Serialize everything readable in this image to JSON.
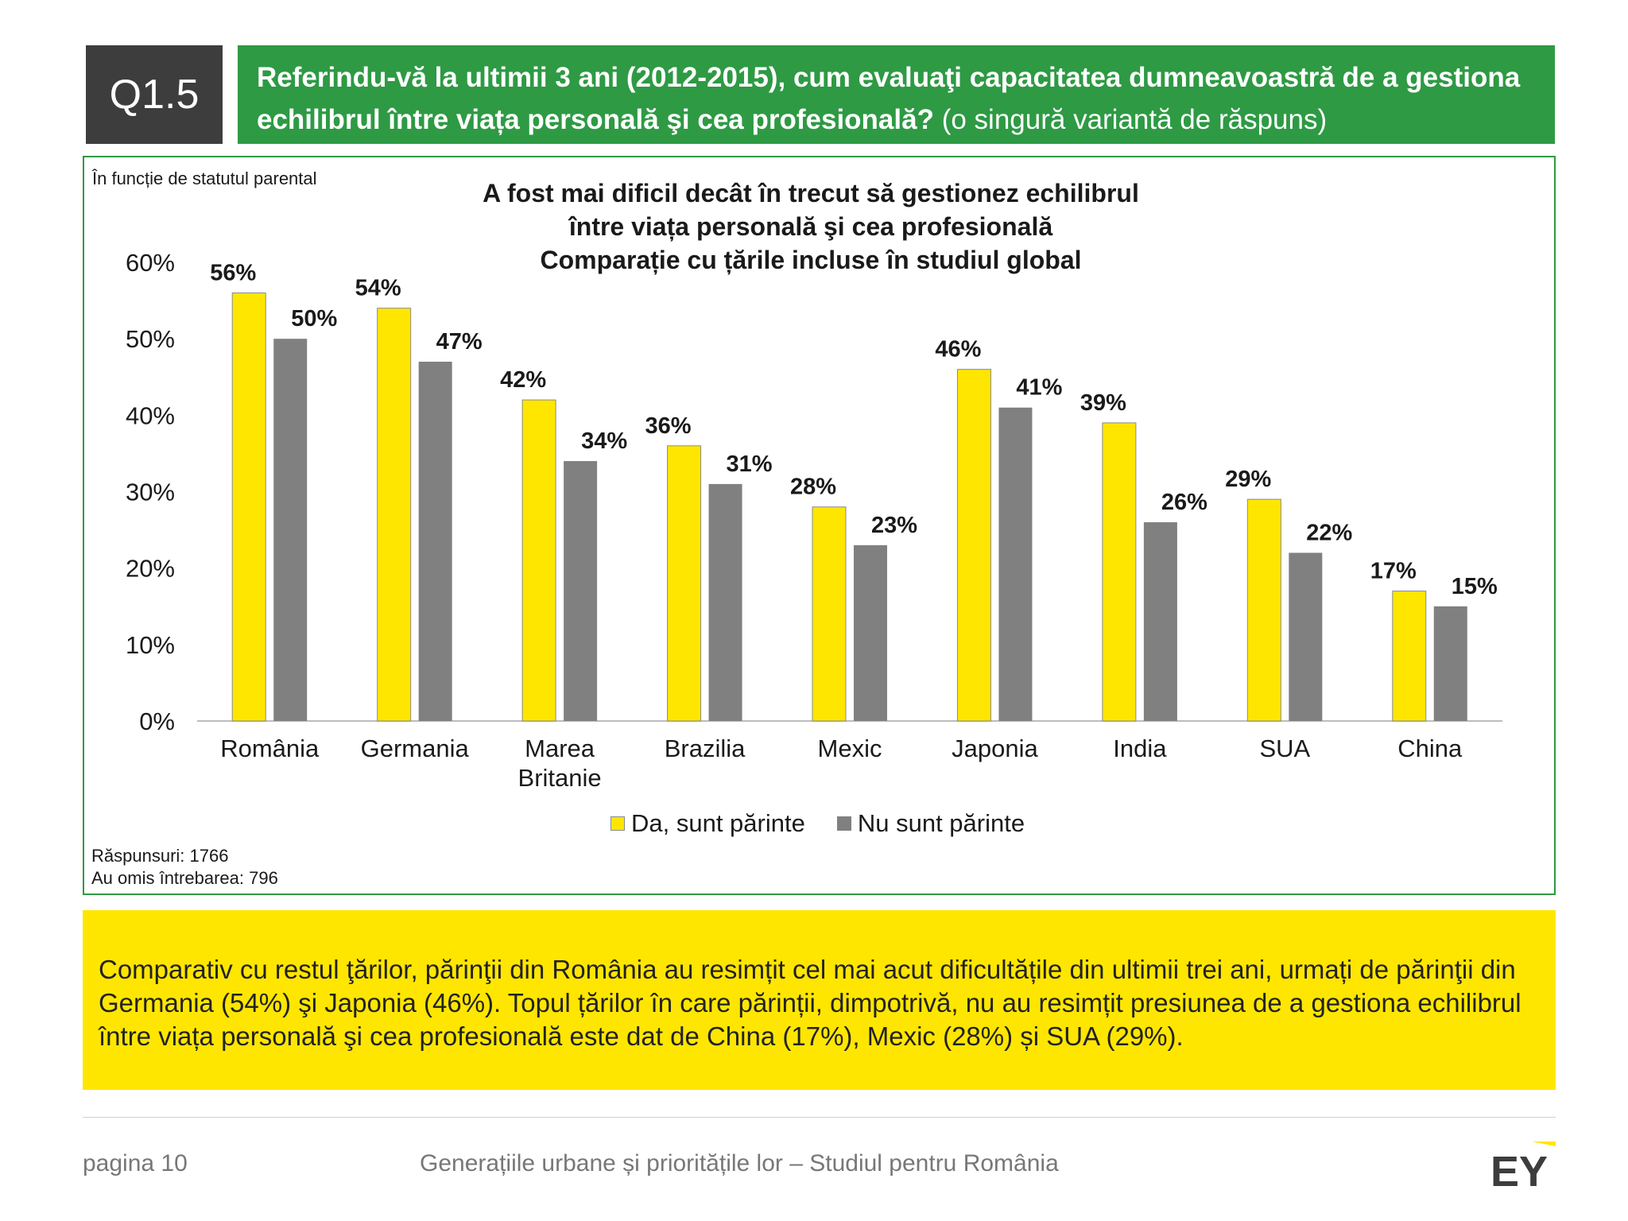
{
  "question": {
    "code": "Q1.5",
    "text": "Referindu-vă la ultimii 3 ani (2012-2015), cum evaluaţi capacitatea dumneavoastră de a gestiona echilibrul între viața personală şi cea profesională?",
    "note": "(o singură variantă de răspuns)"
  },
  "panel": {
    "subtitle": "În funcție de statutul parental",
    "responses": "Răspunsuri: 1766",
    "skipped": "Au omis întrebarea: 796"
  },
  "chart_data": {
    "type": "bar",
    "title_lines": [
      "A fost mai dificil decât în trecut să gestionez echilibrul",
      "între viața personală şi cea profesională",
      "Comparație cu țările incluse în studiul global"
    ],
    "categories": [
      "România",
      "Germania",
      "Marea Britanie",
      "Brazilia",
      "Mexic",
      "Japonia",
      "India",
      "SUA",
      "China"
    ],
    "series": [
      {
        "name": "Da, sunt părinte",
        "color": "#ffe600",
        "values": [
          56,
          54,
          42,
          36,
          28,
          46,
          39,
          29,
          17
        ]
      },
      {
        "name": "Nu sunt părinte",
        "color": "#808080",
        "values": [
          50,
          47,
          34,
          31,
          23,
          41,
          26,
          22,
          15
        ]
      }
    ],
    "ylim": [
      0,
      60
    ],
    "yticks": [
      "0%",
      "10%",
      "20%",
      "30%",
      "40%",
      "50%",
      "60%"
    ],
    "value_format": "percent",
    "legend_position": "bottom",
    "grid": false
  },
  "summary": "Comparativ cu restul ţărilor, părinţii din România au resimțit cel mai acut dificultățile din ultimii trei ani, urmați de părinţii din Germania (54%) şi Japonia (46%). Topul țărilor în care părinții, dimpotrivă, nu au resimțit presiunea de a gestiona echilibrul între viața personală şi cea profesională este dat de China (17%), Mexic (28%) și SUA (29%).",
  "footer": {
    "page": "pagina 10",
    "title": "Generațiile urbane și prioritățile lor  – Studiul pentru România",
    "logo_text": "EY"
  }
}
